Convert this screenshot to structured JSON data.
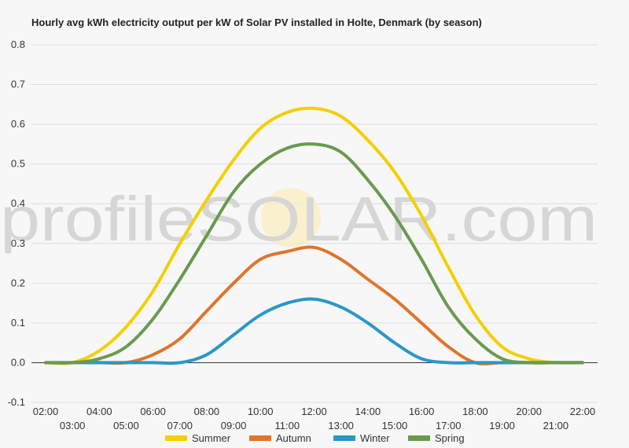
{
  "chart_data": {
    "type": "line",
    "title": "Hourly avg kWh electricity output per kW of Solar PV installed in Holte, Denmark (by season)",
    "watermark": "profileSOLAR.com",
    "xlabel": "",
    "ylabel": "",
    "x": [
      "02:00",
      "03:00",
      "04:00",
      "05:00",
      "06:00",
      "07:00",
      "08:00",
      "09:00",
      "10:00",
      "11:00",
      "12:00",
      "13:00",
      "14:00",
      "15:00",
      "16:00",
      "17:00",
      "18:00",
      "19:00",
      "20:00",
      "21:00",
      "22:00"
    ],
    "ylim": [
      -0.1,
      0.8
    ],
    "yticks": [
      "-0.1",
      "0.0",
      "0.1",
      "0.2",
      "0.3",
      "0.4",
      "0.5",
      "0.6",
      "0.7",
      "0.8"
    ],
    "grid": true,
    "legend_position": "bottom",
    "series": [
      {
        "name": "Summer",
        "color": "#f5cf00",
        "values": [
          0.0,
          0.0,
          0.03,
          0.09,
          0.18,
          0.3,
          0.41,
          0.51,
          0.59,
          0.63,
          0.64,
          0.62,
          0.56,
          0.48,
          0.37,
          0.24,
          0.12,
          0.04,
          0.01,
          0.0,
          0.0
        ]
      },
      {
        "name": "Autumn",
        "color": "#e0742a",
        "values": [
          0.0,
          0.0,
          0.0,
          0.0,
          0.02,
          0.06,
          0.13,
          0.2,
          0.26,
          0.28,
          0.29,
          0.26,
          0.21,
          0.16,
          0.1,
          0.04,
          0.0,
          0.0,
          0.0,
          0.0,
          0.0
        ]
      },
      {
        "name": "Winter",
        "color": "#2b97c8",
        "values": [
          0.0,
          0.0,
          0.0,
          0.0,
          0.0,
          0.0,
          0.02,
          0.07,
          0.12,
          0.15,
          0.16,
          0.14,
          0.1,
          0.05,
          0.01,
          0.0,
          0.0,
          0.0,
          0.0,
          0.0,
          0.0
        ]
      },
      {
        "name": "Spring",
        "color": "#6a9a4e",
        "values": [
          0.0,
          0.0,
          0.01,
          0.04,
          0.11,
          0.21,
          0.32,
          0.43,
          0.5,
          0.54,
          0.55,
          0.53,
          0.46,
          0.37,
          0.26,
          0.14,
          0.06,
          0.01,
          0.0,
          0.0,
          0.0
        ]
      }
    ]
  }
}
